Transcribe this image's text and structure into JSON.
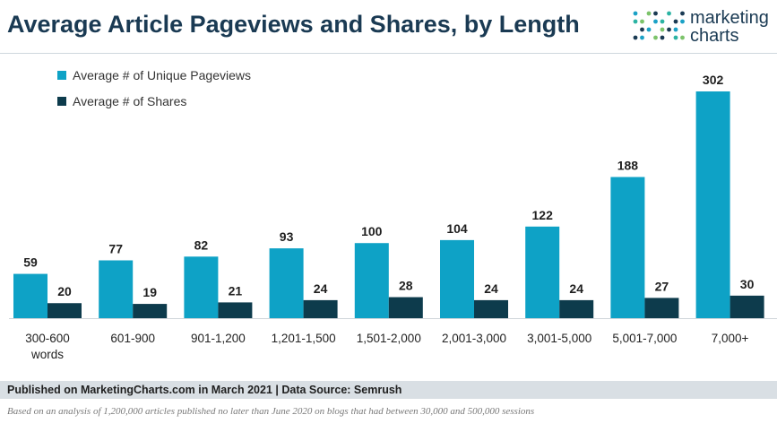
{
  "header": {
    "title": "Average Article Pageviews and Shares, by Length",
    "logo_line1": "marketing",
    "logo_line2": "charts"
  },
  "colors": {
    "pageviews": "#0ea2c6",
    "shares": "#0d3b4c",
    "logo_dots": [
      "#1aa1c6",
      "#2bb3a3",
      "#7cc36a",
      "#1a3a53"
    ]
  },
  "chart_data": {
    "type": "bar",
    "title": "Average Article Pageviews and Shares, by Length",
    "xlabel": "",
    "ylabel": "",
    "categories": [
      [
        "300-600",
        "words"
      ],
      [
        "601-900"
      ],
      [
        "901-1,200"
      ],
      [
        "1,201-1,500"
      ],
      [
        "1,501-2,000"
      ],
      [
        "2,001-3,000"
      ],
      [
        "3,001-5,000"
      ],
      [
        "5,001-7,000"
      ],
      [
        "7,000+"
      ]
    ],
    "series": [
      {
        "name": "Average # of Unique Pageviews",
        "values": [
          59,
          77,
          82,
          93,
          100,
          104,
          122,
          188,
          302
        ]
      },
      {
        "name": "Average # of Shares",
        "values": [
          20,
          19,
          21,
          24,
          28,
          24,
          24,
          27,
          30
        ]
      }
    ],
    "ylim": [
      0,
      302
    ],
    "grid": false,
    "legend": "top-left",
    "data_labels": true
  },
  "footer": {
    "source": "Published on MarketingCharts.com in March 2021 | Data Source: Semrush",
    "note": "Based on an analysis of 1,200,000 articles published no later than June 2020 on blogs that had between 30,000 and 500,000 sessions"
  }
}
